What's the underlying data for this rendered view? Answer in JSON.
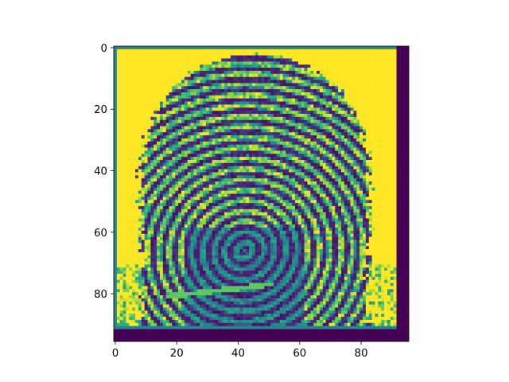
{
  "chart_data": {
    "type": "heatmap",
    "title": "",
    "xlabel": "",
    "ylabel": "",
    "colormap": "viridis",
    "image_shape": [
      96,
      96
    ],
    "xlim": [
      -0.5,
      95.5
    ],
    "ylim": [
      95.5,
      -0.5
    ],
    "x_ticks": [
      0,
      20,
      40,
      60,
      80
    ],
    "x_tick_labels": [
      "0",
      "20",
      "40",
      "60",
      "80"
    ],
    "y_ticks": [
      0,
      20,
      40,
      60,
      80
    ],
    "y_tick_labels": [
      "0",
      "20",
      "40",
      "60",
      "80"
    ],
    "content": "fingerprint (96x96 grayscale)",
    "regions": {
      "background_value": 1.0,
      "frame_value": 0.45,
      "right_margin_cols": [
        92,
        95
      ],
      "bottom_margin_rows": [
        92,
        95
      ],
      "margin_value": 0.0
    },
    "fingerprint": {
      "core_center": [
        42,
        66
      ],
      "top_y": 2,
      "left_x": 8,
      "right_x": 83,
      "bottom_y": 92
    },
    "grid": false
  },
  "colors": {
    "viridis_low": "#440154",
    "viridis_mid": "#21918c",
    "viridis_high": "#fde725",
    "axis": "#000000"
  }
}
